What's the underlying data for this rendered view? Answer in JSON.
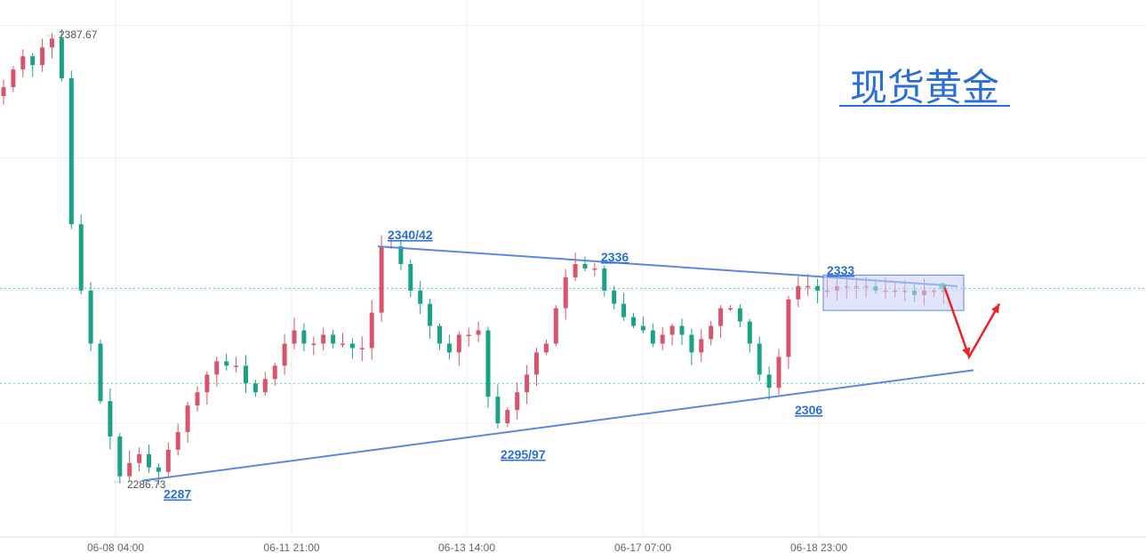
{
  "title": "现货黄金",
  "colors": {
    "up": "#d9546a",
    "down": "#1aa288",
    "trend": "#5b86e5",
    "title": "#2a6fd8",
    "arrow": "#ee2222",
    "box_fill": "#c9cff7",
    "grid": "#eeeeee",
    "level": "#55cdb4"
  },
  "high_label": "2387.67",
  "low_label": "2286.73",
  "annotations": [
    "2340/42",
    "2336",
    "2333",
    "2306",
    "2295/97",
    "2287"
  ],
  "chart_data": {
    "type": "candlestick",
    "x_ticks": [
      "06-08 04:00",
      "06-11 21:00",
      "06-13 14:00",
      "06-17 07:00",
      "06-18 23:00"
    ],
    "y_range": [
      2280,
      2395
    ],
    "grid": true,
    "high": 2387.67,
    "low": 2286.73,
    "horizontal_levels": [
      2330.5,
      2309
    ],
    "resistance_line": {
      "from": {
        "tick": "06-11 21:00",
        "value": 2340
      },
      "to": {
        "tick": "06-18 23:00",
        "value": 2331
      }
    },
    "support_line": {
      "from": {
        "tick": "06-08 04:00",
        "value": 2287
      },
      "to": {
        "tick": "06-18 23:00",
        "value": 2312
      }
    },
    "consolidation_box": {
      "value_top": 2333.5,
      "value_bottom": 2325.5
    },
    "annotations": [
      {
        "text": "2340/42",
        "value": 2341
      },
      {
        "text": "2336",
        "value": 2336
      },
      {
        "text": "2333",
        "value": 2333
      },
      {
        "text": "2306",
        "value": 2306
      },
      {
        "text": "2295/97",
        "value": 2296
      },
      {
        "text": "2287",
        "value": 2287
      }
    ],
    "close_path": [
      2376,
      2380,
      2383,
      2381,
      2385,
      2387,
      2378,
      2345,
      2330,
      2318,
      2305,
      2297,
      2288,
      2291,
      2293,
      2290,
      2289,
      2294,
      2298,
      2304,
      2307,
      2311,
      2314,
      2313,
      2313,
      2309,
      2307,
      2310,
      2313,
      2318,
      2321,
      2318,
      2318,
      2320,
      2318,
      2318,
      2317,
      2317,
      2325,
      2340,
      2340,
      2336,
      2330,
      2327,
      2322,
      2318,
      2316,
      2320,
      2320,
      2321,
      2306,
      2300,
      2303,
      2307,
      2311,
      2316,
      2318,
      2326,
      2333,
      2336,
      2335,
      2335,
      2330,
      2327,
      2324,
      2322,
      2321,
      2318,
      2320,
      2322,
      2320,
      2316,
      2319,
      2322,
      2326,
      2326,
      2323,
      2318,
      2311,
      2308,
      2315,
      2328,
      2331,
      2331,
      2330,
      2330,
      2331,
      2331,
      2331,
      2331,
      2330,
      2330,
      2330,
      2330,
      2329,
      2330,
      2330,
      2330
    ]
  }
}
